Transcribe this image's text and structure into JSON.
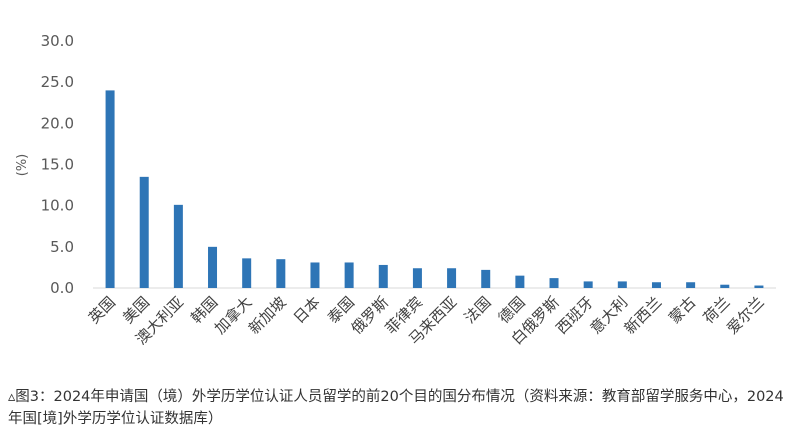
{
  "chart_data": {
    "type": "bar",
    "ylabel": "(%)",
    "ylim": [
      0,
      30
    ],
    "yticks": [
      "30.0",
      "25.0",
      "20.0",
      "15.0",
      "10.0",
      "5.0",
      "0.0"
    ],
    "categories": [
      "英国",
      "美国",
      "澳大利亚",
      "韩国",
      "加拿大",
      "新加坡",
      "日本",
      "泰国",
      "俄罗斯",
      "菲律宾",
      "马来西亚",
      "法国",
      "德国",
      "白俄罗斯",
      "西班牙",
      "意大利",
      "新西兰",
      "蒙古",
      "荷兰",
      "爱尔兰"
    ],
    "values": [
      24.0,
      13.5,
      10.1,
      5.0,
      3.6,
      3.5,
      3.1,
      3.1,
      2.8,
      2.4,
      2.4,
      2.2,
      1.5,
      1.2,
      0.8,
      0.8,
      0.7,
      0.7,
      0.4,
      0.3
    ],
    "bar_color": "#2E75B6",
    "grid": false
  },
  "caption": "▵图3：2024年申请国（境）外学历学位认证人员留学的前20个目的国分布情况（资料来源：教育部留学服务中心，2024年国[境]外学历学位认证数据库）"
}
